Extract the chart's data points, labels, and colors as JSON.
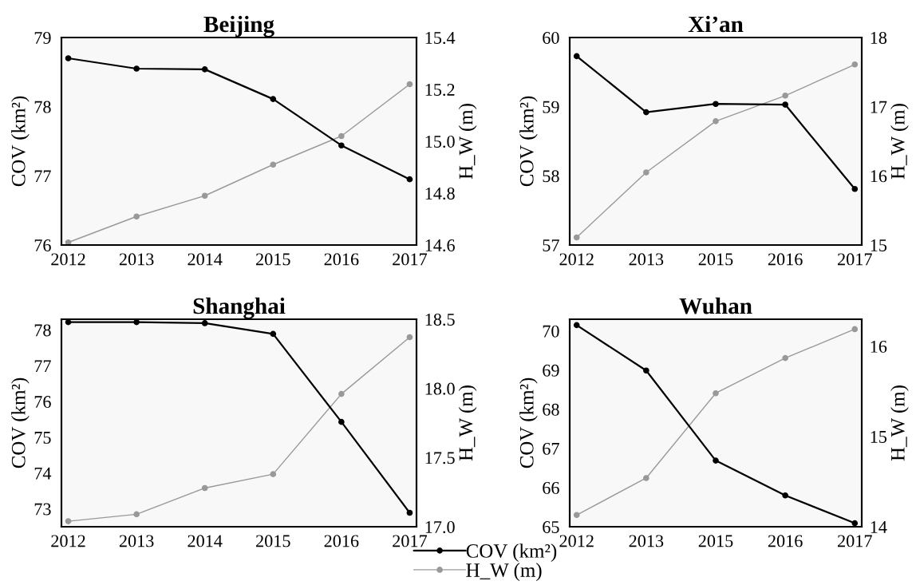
{
  "chart_data": [
    {
      "type": "line",
      "title": "Beijing",
      "categories": [
        "2012",
        "2013",
        "2014",
        "2015",
        "2016",
        "2017"
      ],
      "ylabel": "COV (km²)",
      "y2label": "H_W (m)",
      "ylim": [
        76,
        79
      ],
      "yticks": [
        76,
        77,
        78,
        79
      ],
      "y2lim": [
        14.6,
        15.4
      ],
      "y2ticks": [
        14.6,
        14.8,
        {
          "value": 15,
          "label": "15.0"
        },
        15.2,
        15.4
      ],
      "marker": "circle",
      "line_style": "solid",
      "series": [
        {
          "color": "#000000",
          "values": [
            78.7,
            78.55,
            78.54,
            78.11,
            77.44,
            76.95
          ]
        },
        {
          "color": "#999999",
          "axis": "y2",
          "values": [
            14.61,
            14.71,
            14.79,
            14.91,
            15.02,
            15.22
          ]
        }
      ]
    },
    {
      "type": "line",
      "title": "Xi’an",
      "categories": [
        "2012",
        "2013",
        "2015",
        "2016",
        "2017"
      ],
      "ylabel": "COV (km²)",
      "y2label": "H_W (m)",
      "ylim": [
        57,
        60
      ],
      "yticks": [
        57,
        58,
        59,
        60
      ],
      "y2lim": [
        15,
        18
      ],
      "y2ticks": [
        15,
        16,
        17,
        18
      ],
      "marker": "circle",
      "line_style": "solid",
      "series": [
        {
          "color": "#000000",
          "values": [
            59.73,
            58.92,
            59.04,
            59.03,
            57.81
          ]
        },
        {
          "color": "#999999",
          "axis": "y2",
          "values": [
            15.11,
            16.05,
            16.79,
            17.16,
            17.61
          ]
        }
      ]
    },
    {
      "type": "line",
      "title": "Shanghai",
      "categories": [
        "2012",
        "2013",
        "2014",
        "2015",
        "2016",
        "2017"
      ],
      "ylabel": "COV (km²)",
      "y2label": "H_W (m)",
      "ylim": [
        72.5,
        78.3
      ],
      "yticks": [
        73,
        74,
        75,
        76,
        77,
        78
      ],
      "y2lim": [
        17,
        18.5
      ],
      "y2ticks": [
        {
          "value": 17,
          "label": "17.0"
        },
        17.5,
        {
          "value": 18,
          "label": "18.0"
        },
        18.5
      ],
      "marker": "circle",
      "line_style": "solid",
      "legend": "bottom",
      "series": [
        {
          "name": "COV (km²)",
          "color": "#000000",
          "values": [
            78.22,
            78.22,
            78.19,
            77.89,
            75.43,
            72.89
          ]
        },
        {
          "name": "H_W (m)",
          "color": "#999999",
          "axis": "y2",
          "values": [
            17.04,
            17.09,
            17.28,
            17.38,
            17.96,
            18.37
          ]
        }
      ]
    },
    {
      "type": "line",
      "title": "Wuhan",
      "categories": [
        "2012",
        "2013",
        "2015",
        "2016",
        "2017"
      ],
      "ylabel": "COV (km²)",
      "y2label": "H_W (m)",
      "ylim": [
        65,
        70.3
      ],
      "yticks": [
        65,
        66,
        67,
        68,
        69,
        70
      ],
      "y2lim": [
        14,
        16.3
      ],
      "y2ticks": [
        14,
        15,
        16
      ],
      "marker": "circle",
      "line_style": "solid",
      "series": [
        {
          "color": "#000000",
          "values": [
            70.15,
            68.99,
            66.69,
            65.8,
            65.09
          ]
        },
        {
          "color": "#999999",
          "axis": "y2",
          "values": [
            14.13,
            14.54,
            15.48,
            15.87,
            16.19
          ]
        }
      ]
    }
  ]
}
